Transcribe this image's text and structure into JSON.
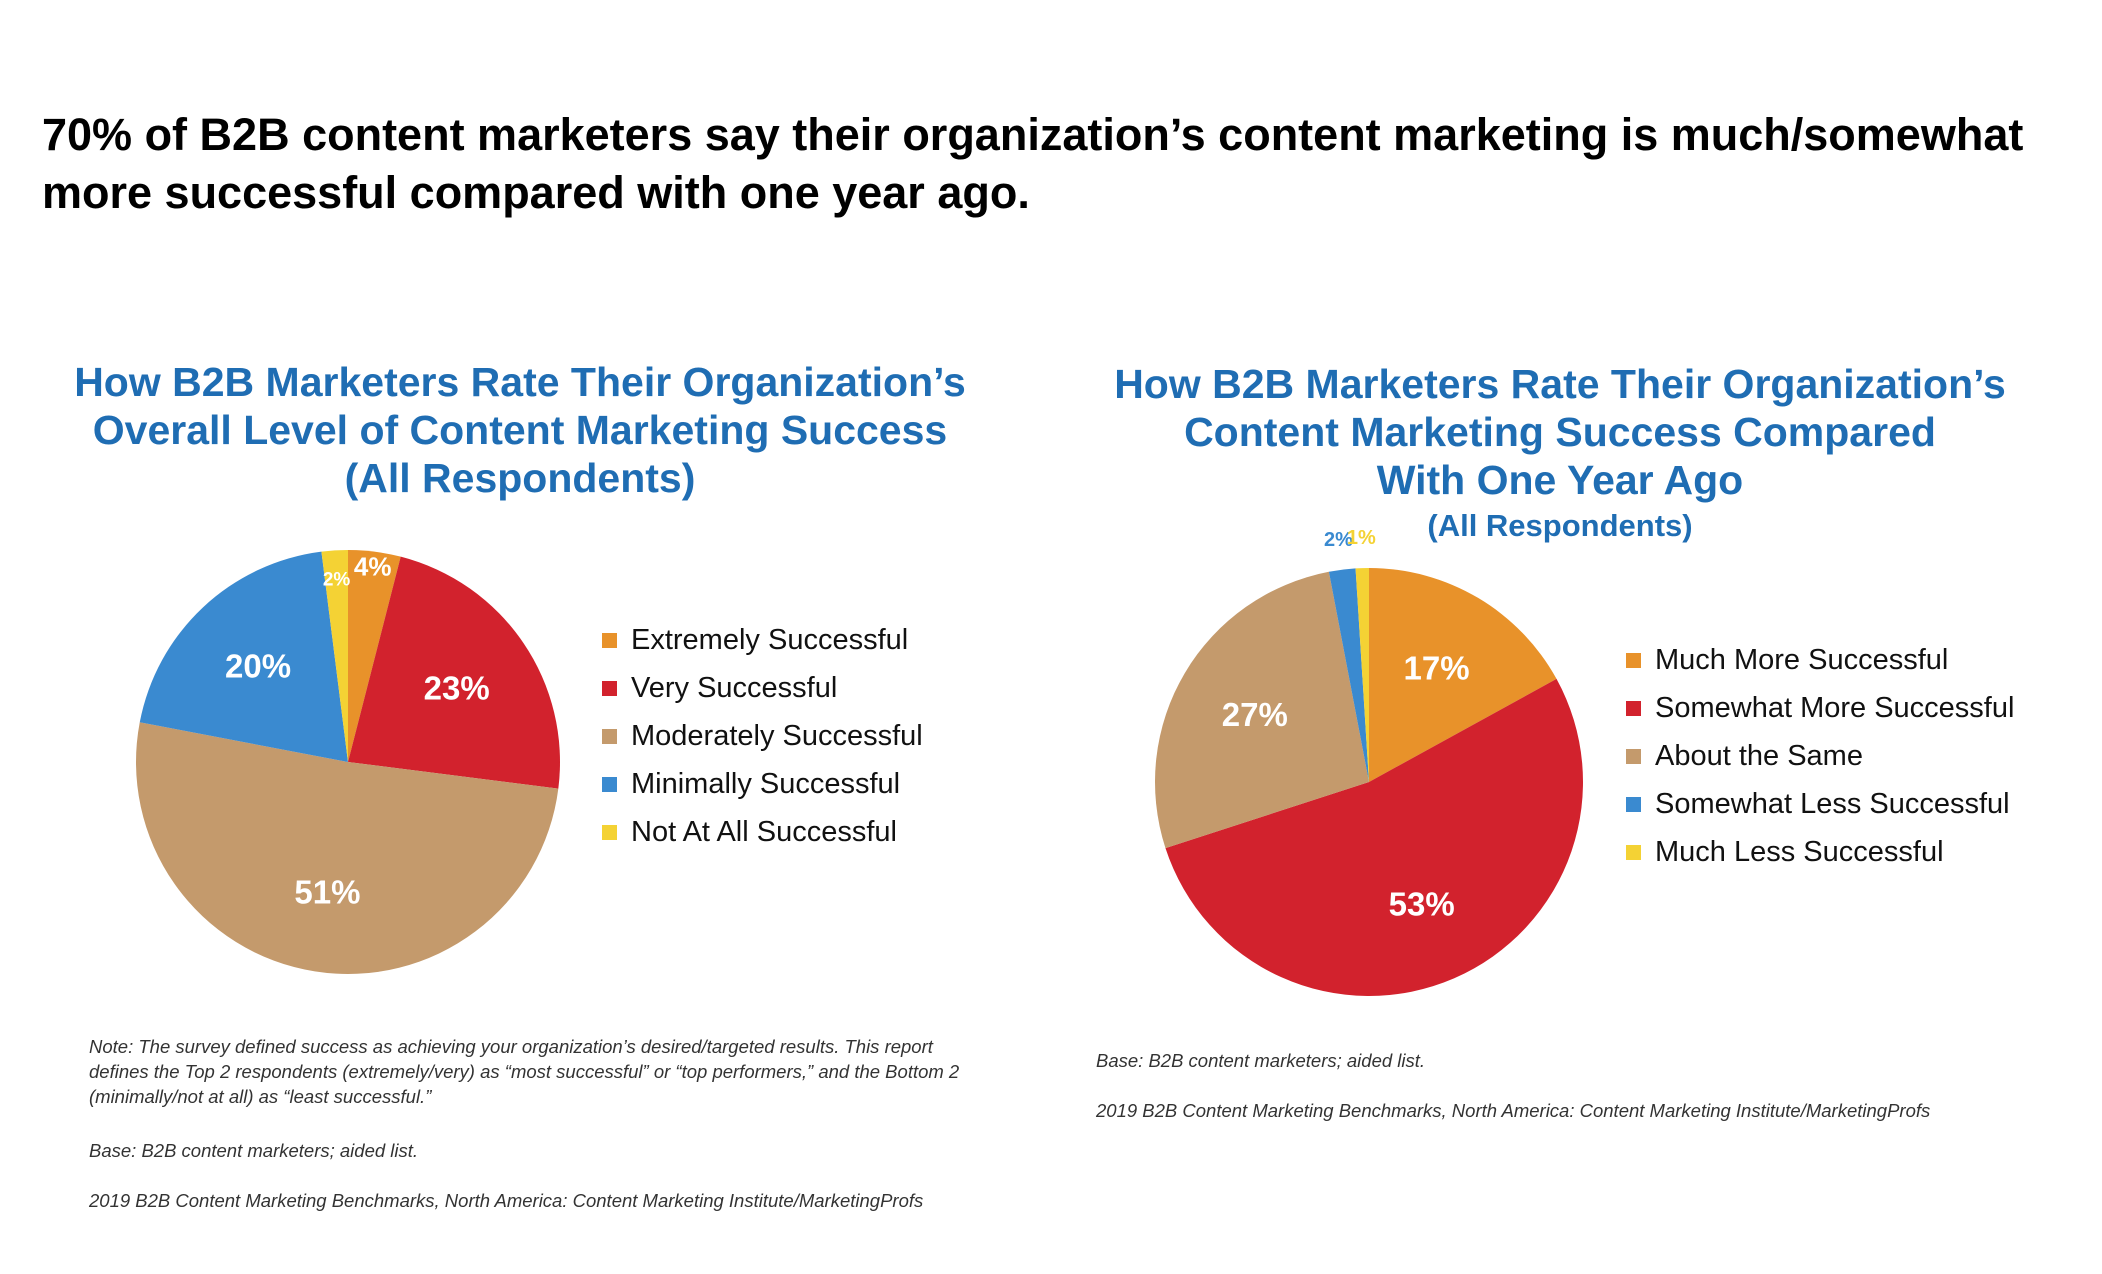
{
  "headline": "70% of B2B content marketers say their organization’s content marketing is much/somewhat more successful compared with one year ago.",
  "chart_data": [
    {
      "type": "pie",
      "title": "How B2B Marketers Rate Their Organization’s Overall Level of Content Marketing Success (All Respondents)",
      "title_lines": [
        "How B2B Marketers Rate Their Organization’s",
        "Overall Level of Content Marketing Success",
        "(All Respondents)"
      ],
      "subtitle": "",
      "categories": [
        "Extremely Successful",
        "Very Successful",
        "Moderately Successful",
        "Minimally Successful",
        "Not At All Successful"
      ],
      "values": [
        4,
        23,
        51,
        20,
        2
      ],
      "labels": [
        "4%",
        "23%",
        "51%",
        "20%",
        "2%"
      ],
      "colors": [
        "#e8922a",
        "#d2222d",
        "#c49a6c",
        "#3a8ad0",
        "#f4d234"
      ],
      "legend_position": "right",
      "notes": [
        "Note: The survey defined success as achieving your organization’s desired/targeted results. This report defines the Top 2 respondents (extremely/very) as “most successful” or “top performers,” and the Bottom 2 (minimally/not at all) as “least successful.”",
        "Base: B2B content marketers; aided list.",
        "2019 B2B Content Marketing Benchmarks, North America: Content Marketing Institute/MarketingProfs"
      ]
    },
    {
      "type": "pie",
      "title": "How B2B Marketers Rate Their Organization’s Content Marketing Success Compared With One Year Ago",
      "title_lines": [
        "How B2B Marketers Rate Their Organization’s",
        "Content Marketing Success Compared",
        "With One Year Ago"
      ],
      "subtitle": "(All Respondents)",
      "categories": [
        "Much More Successful",
        "Somewhat More Successful",
        "About the Same",
        "Somewhat Less Successful",
        "Much Less Successful"
      ],
      "values": [
        17,
        53,
        27,
        2,
        1
      ],
      "labels": [
        "17%",
        "53%",
        "27%",
        "2%",
        "1%"
      ],
      "colors": [
        "#e8922a",
        "#d2222d",
        "#c49a6c",
        "#3a8ad0",
        "#f4d234"
      ],
      "legend_position": "right",
      "notes": [
        "Base: B2B content marketers; aided list.",
        "2019 B2B Content Marketing Benchmarks, North America: Content Marketing Institute/MarketingProfs"
      ]
    }
  ]
}
